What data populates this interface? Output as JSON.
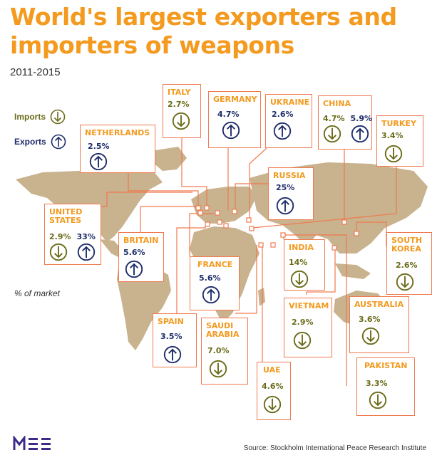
{
  "title_line1": "World's largest exporters and",
  "title_line2": "importers of weapons",
  "subtitle": "2011-2015",
  "legend": {
    "imports": "Imports",
    "exports": "Exports"
  },
  "market_note": "% of market",
  "source": "Source: Stockholm International Peace Research Institute",
  "colors": {
    "title": "#f39a1f",
    "box_border": "#f07a4f",
    "map": "#c9b28e",
    "imports": "#6b6b1a",
    "exports": "#1f2d6b"
  },
  "countries": {
    "italy": {
      "name": "ITALY",
      "value": "2.7%",
      "type": "import"
    },
    "germany": {
      "name": "GERMANY",
      "value": "4.7%",
      "type": "export"
    },
    "ukraine": {
      "name": "UKRAINE",
      "value": "2.6%",
      "type": "export"
    },
    "china": {
      "name": "CHINA",
      "import_value": "4.7%",
      "export_value": "5.9%"
    },
    "turkey": {
      "name": "TURKEY",
      "value": "3.4%",
      "type": "import"
    },
    "netherlands": {
      "name": "NETHERLANDS",
      "value": "2.5%",
      "type": "export"
    },
    "russia": {
      "name": "RUSSIA",
      "value": "25%",
      "type": "export"
    },
    "united_states": {
      "name_line1": "UNITED",
      "name_line2": "STATES",
      "import_value": "2.9%",
      "export_value": "33%"
    },
    "britain": {
      "name": "BRITAIN",
      "value": "5.6%",
      "type": "export"
    },
    "france": {
      "name": "FRANCE",
      "value": "5.6%",
      "type": "export"
    },
    "india": {
      "name": "INDIA",
      "value": "14%",
      "type": "import"
    },
    "south_korea": {
      "name_line1": "SOUTH",
      "name_line2": "KOREA",
      "value": "2.6%",
      "type": "import"
    },
    "spain": {
      "name": "SPAIN",
      "value": "3.5%",
      "type": "export"
    },
    "saudi_arabia": {
      "name_line1": "SAUDI",
      "name_line2": "ARABIA",
      "value": "7.0%",
      "type": "import"
    },
    "vietnam": {
      "name": "VIETNAM",
      "value": "2.9%",
      "type": "import"
    },
    "australia": {
      "name": "AUSTRALIA",
      "value": "3.6%",
      "type": "import"
    },
    "uae": {
      "name": "UAE",
      "value": "4.6%",
      "type": "import"
    },
    "pakistan": {
      "name": "PAKISTAN",
      "value": "3.3%",
      "type": "import"
    }
  }
}
